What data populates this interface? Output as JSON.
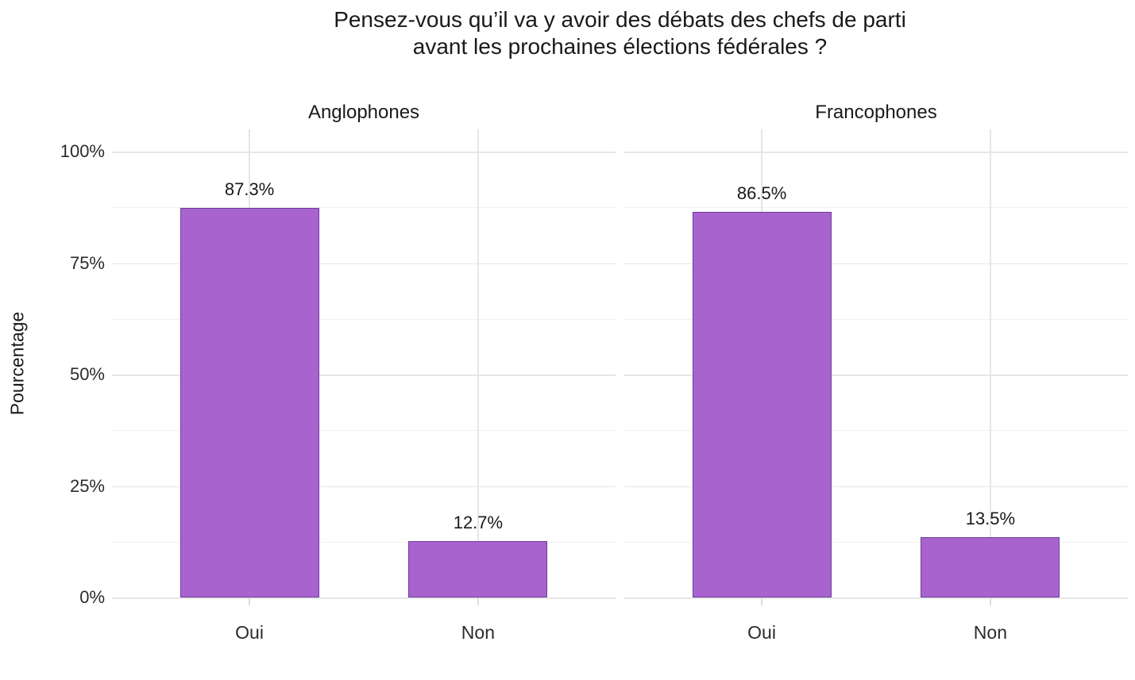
{
  "chart_data": {
    "type": "bar",
    "title": "Pensez-vous qu’il va y avoir des débats des chefs de parti\navant les prochaines élections fédérales ?",
    "ylabel": "Pourcentage",
    "xlabel": "",
    "categories": [
      "Oui",
      "Non"
    ],
    "panels": [
      {
        "label": "Anglophones",
        "values": [
          87.3,
          12.7
        ],
        "value_labels": [
          "87.3%",
          "12.7%"
        ]
      },
      {
        "label": "Francophones",
        "values": [
          86.5,
          13.5
        ],
        "value_labels": [
          "86.5%",
          "13.5%"
        ]
      }
    ],
    "y_axis": {
      "ticks": [
        {
          "value": 0,
          "label": "0%"
        },
        {
          "value": 25,
          "label": "25%"
        },
        {
          "value": 50,
          "label": "50%"
        },
        {
          "value": 75,
          "label": "75%"
        },
        {
          "value": 100,
          "label": "100%"
        }
      ],
      "minor": [
        12.5,
        37.5,
        62.5,
        87.5
      ],
      "ylim": [
        0,
        105
      ]
    },
    "layout_hints": {
      "grid": "on",
      "legend": "none",
      "facets": 2
    },
    "colors": {
      "bar_fill": "#a963ce",
      "bar_border": "#6a3d9a",
      "grid_major": "#e6e6e6",
      "grid_minor": "#f0f0f0",
      "axis_tick": "#dcdcdc",
      "text": "#1a1a1a",
      "text_axis": "#2b2b2b",
      "background": "#ffffff"
    }
  }
}
